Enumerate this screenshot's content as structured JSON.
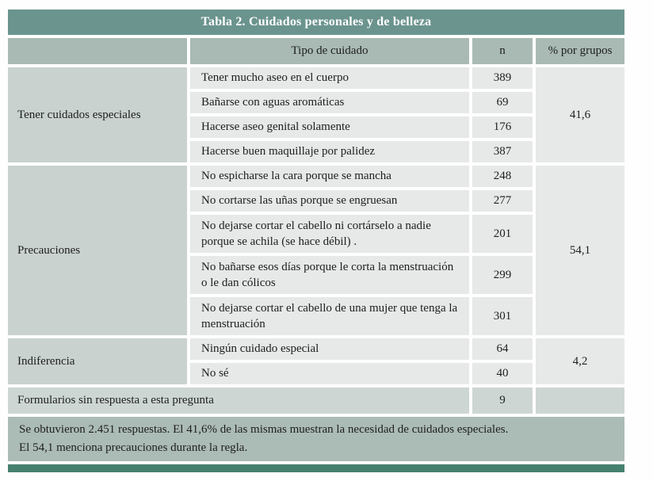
{
  "title": "Tabla 2. Cuidados personales y de belleza",
  "columns": {
    "group": "",
    "tipo": "Tipo de cuidado",
    "n": "n",
    "pct": "% por grupos"
  },
  "groups": [
    {
      "label": "Tener cuidados especiales",
      "pct": "41,6",
      "items": [
        {
          "label": "Tener mucho aseo en el cuerpo",
          "n": "389"
        },
        {
          "label": "Bañarse con aguas aromáticas",
          "n": "69"
        },
        {
          "label": "Hacerse aseo genital solamente",
          "n": "176"
        },
        {
          "label": "Hacerse buen maquillaje por palidez",
          "n": "387"
        }
      ]
    },
    {
      "label": "Precauciones",
      "pct": "54,1",
      "items": [
        {
          "label": "No espicharse la cara porque se mancha",
          "n": "248"
        },
        {
          "label": "No cortarse las uñas porque se engruesan",
          "n": "277"
        },
        {
          "label": "No dejarse cortar el cabello ni cortárselo a nadie porque se achila (se hace débil) .",
          "n": "201"
        },
        {
          "label": "No bañarse esos días porque le corta la menstruación o le dan cólicos",
          "n": "299"
        },
        {
          "label": "No dejarse cortar el cabello de una mujer que tenga la menstruación",
          "n": "301"
        }
      ]
    },
    {
      "label": "Indiferencia",
      "pct": "4,2",
      "items": [
        {
          "label": "Ningún cuidado especial",
          "n": "64"
        },
        {
          "label": "No sé",
          "n": "40"
        }
      ]
    }
  ],
  "no_response": {
    "label": "Formularios sin respuesta a esta pregunta",
    "n": "9"
  },
  "note_lines": {
    "line1": "Se obtuvieron 2.451 respuestas. El 41,6% de las mismas muestran la necesidad de cuidados especiales.",
    "line2": "El 54,1 menciona precauciones durante la regla."
  },
  "colors": {
    "title_bar": "#6b948e",
    "header_bg": "#a9bab5",
    "group_cell_bg": "#c9d2ce",
    "data_cell_bg": "#e6e9e7",
    "no_response_bg": "#cdd6d2",
    "note_bg": "#abbbb6",
    "bottom_bar": "#45806f"
  }
}
